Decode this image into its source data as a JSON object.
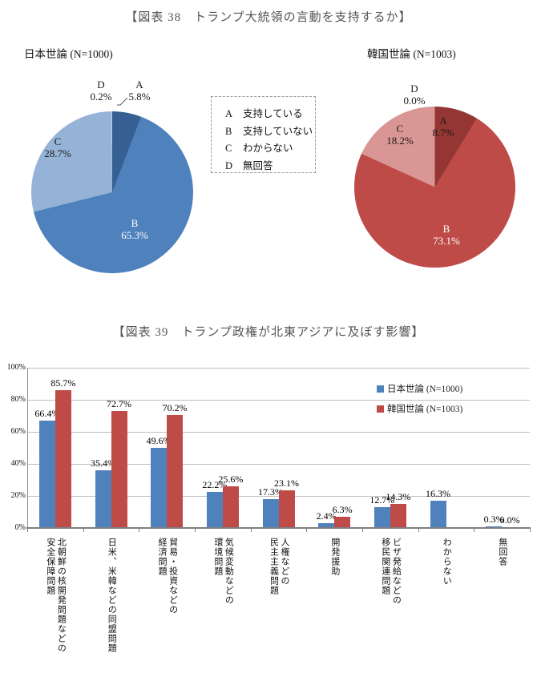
{
  "fig38": {
    "title": "【図表 38　トランプ大統領の言動を支持するか】",
    "japan_label": "日本世論 (N=1000)",
    "korea_label": "韓国世論 (N=1003)",
    "legend_items": [
      {
        "key": "A",
        "label": "支持している"
      },
      {
        "key": "B",
        "label": "支持していない"
      },
      {
        "key": "C",
        "label": "わからない"
      },
      {
        "key": "D",
        "label": "無回答"
      }
    ]
  },
  "fig39": {
    "title": "【図表 39　トランプ政権が北東アジアに及ぼす影響】"
  },
  "chart_data": [
    {
      "type": "pie",
      "title": "日本世論 (N=1000)",
      "labels": [
        "A",
        "B",
        "C",
        "D"
      ],
      "values": [
        5.8,
        65.3,
        28.7,
        0.2
      ],
      "colors": [
        "#376092",
        "#4F81BD",
        "#95B3D7",
        "#B9CDE5"
      ],
      "start_angle": "top",
      "direction": "clockwise"
    },
    {
      "type": "pie",
      "title": "韓国世論 (N=1003)",
      "labels": [
        "A",
        "B",
        "C",
        "D"
      ],
      "values": [
        8.7,
        73.1,
        18.2,
        0.0
      ],
      "colors": [
        "#943634",
        "#BE4B48",
        "#D99694",
        "#E6B9B8"
      ],
      "start_angle": "top",
      "direction": "clockwise"
    },
    {
      "type": "bar",
      "title": "【図表 39　トランプ政権が北東アジアに及ぼす影響】",
      "categories": [
        "北朝鮮の核開発問題などの\n安全保障問題",
        "日米、米韓などの同盟問題",
        "貿易・投資などの\n経済問題",
        "気候変動などの\n環境問題",
        "人権などの\n民主主義問題",
        "開発援助",
        "ビザ発給などの\n移民関連問題",
        "わからない",
        "無回答"
      ],
      "series": [
        {
          "name": "日本世論 (N=1000)",
          "color": "#4F81BD",
          "values": [
            66.4,
            35.4,
            49.6,
            22.2,
            17.3,
            2.4,
            12.7,
            16.3,
            0.3
          ]
        },
        {
          "name": "韓国世論 (N=1003)",
          "color": "#BE4B48",
          "values": [
            85.7,
            72.7,
            70.2,
            25.6,
            23.1,
            6.3,
            14.3,
            null,
            0.0
          ]
        }
      ],
      "ylabel": "",
      "xlabel": "",
      "ylim": [
        0,
        100
      ],
      "yticks": [
        "0%",
        "20%",
        "40%",
        "60%",
        "80%",
        "100%"
      ],
      "grid": true,
      "legend_position": "upper-right-inside"
    }
  ]
}
